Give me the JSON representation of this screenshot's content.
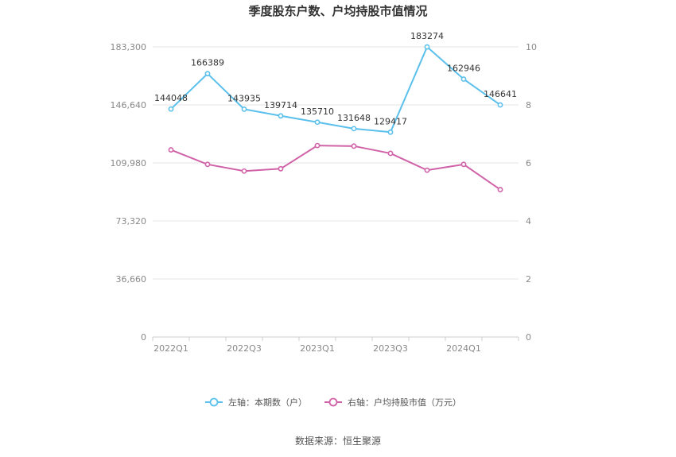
{
  "chart_data": {
    "type": "line",
    "title": "季度股东户数、户均持股市值情况",
    "categories": [
      "2022Q1",
      "2022Q2",
      "2022Q3",
      "2022Q4",
      "2023Q1",
      "2023Q2",
      "2023Q3",
      "2023Q4",
      "2024Q1",
      "2024Q2"
    ],
    "x_tick_labels": [
      "2022Q1",
      "2022Q3",
      "2023Q1",
      "2023Q3",
      "2024Q1"
    ],
    "left_axis": {
      "min": 0,
      "max": 183300,
      "ticks": [
        "0",
        "36,660",
        "73,320",
        "109,980",
        "146,640",
        "183,300"
      ]
    },
    "right_axis": {
      "min": 0,
      "max": 10,
      "ticks": [
        "0",
        "2",
        "4",
        "6",
        "8",
        "10"
      ]
    },
    "series": [
      {
        "name": "左轴：本期数（户）",
        "axis": "left",
        "color": "#5bc0eb",
        "values": [
          144048,
          166389,
          143935,
          139714,
          135710,
          131648,
          129417,
          183274,
          162946,
          146641
        ],
        "labels": [
          "144048",
          "166389",
          "143935",
          "139714",
          "135710",
          "131648",
          "129417",
          "183274",
          "162946",
          "146641"
        ]
      },
      {
        "name": "右轴：户均持股市值（万元）",
        "axis": "right",
        "color": "#d062a8",
        "values": [
          6.45,
          5.95,
          5.72,
          5.8,
          6.6,
          6.58,
          6.33,
          5.75,
          5.95,
          5.08
        ]
      }
    ],
    "grid": true,
    "legend_position": "bottom"
  },
  "source_text": "数据来源：恒生聚源"
}
